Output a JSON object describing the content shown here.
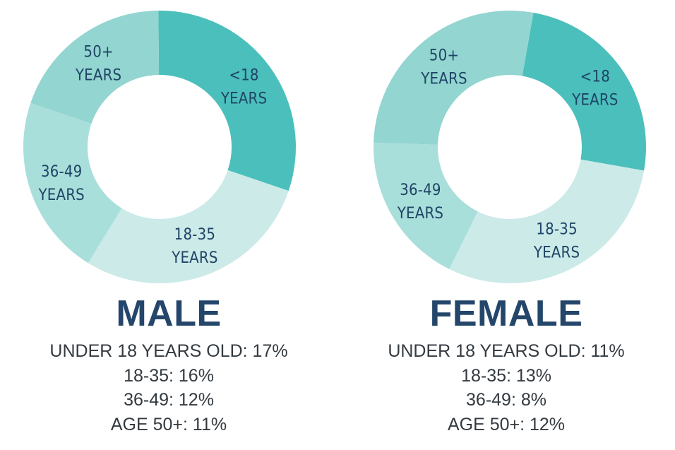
{
  "colors": {
    "under18": "#4bbfbb",
    "age18_35": "#cbeae8",
    "age36_49": "#a9dfdb",
    "age50plus": "#93d5d0",
    "title": "#24466a",
    "label": "#1f4466",
    "stats_text": "#333a40"
  },
  "chart_data": [
    {
      "type": "pie",
      "title": "MALE",
      "categories": [
        "<18 YEARS",
        "18-35 YEARS",
        "36-49 YEARS",
        "50+ YEARS"
      ],
      "values": [
        17,
        16,
        12,
        11
      ],
      "donut": true,
      "slice_labels": [
        [
          "<18",
          "YEARS"
        ],
        [
          "18-35",
          "YEARS"
        ],
        [
          "36-49",
          "YEARS"
        ],
        [
          "50+",
          "YEARS"
        ]
      ]
    },
    {
      "type": "pie",
      "title": "FEMALE",
      "categories": [
        "<18 YEARS",
        "18-35 YEARS",
        "36-49 YEARS",
        "50+ YEARS"
      ],
      "values": [
        11,
        13,
        8,
        12
      ],
      "donut": true,
      "slice_labels": [
        [
          "<18",
          "YEARS"
        ],
        [
          "18-35",
          "YEARS"
        ],
        [
          "36-49",
          "YEARS"
        ],
        [
          "50+",
          "YEARS"
        ]
      ]
    }
  ],
  "male": {
    "title": "MALE",
    "stats": [
      "UNDER 18 YEARS OLD: 17%",
      "18-35: 16%",
      "36-49: 12%",
      "AGE 50+: 11%"
    ]
  },
  "female": {
    "title": "FEMALE",
    "stats": [
      "UNDER 18 YEARS OLD: 11%",
      "18-35: 13%",
      "36-49: 8%",
      "AGE 50+: 12%"
    ]
  }
}
